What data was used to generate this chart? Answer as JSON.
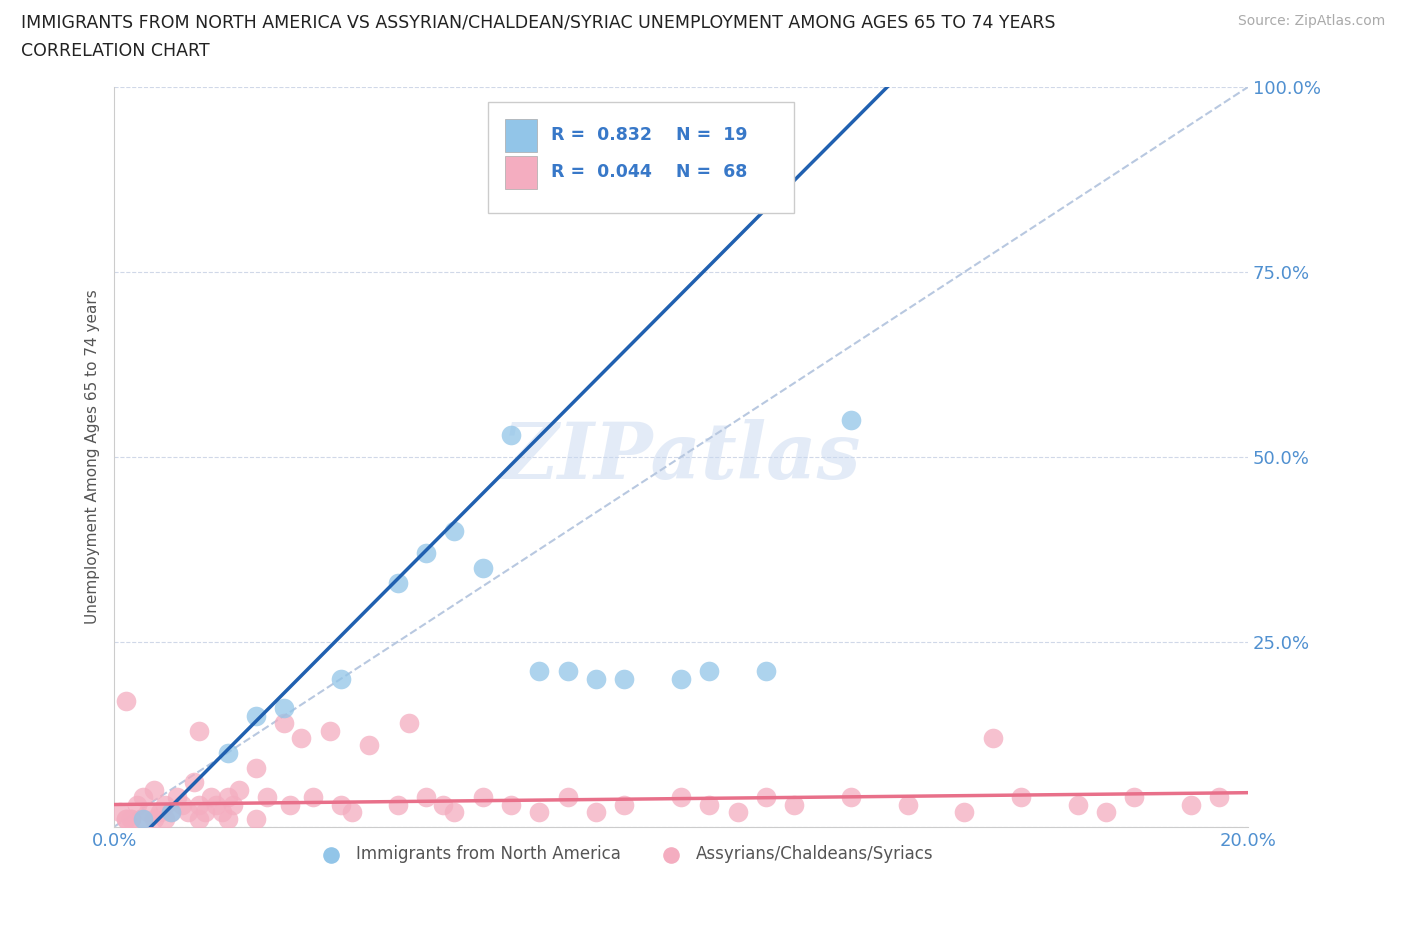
{
  "title_line1": "IMMIGRANTS FROM NORTH AMERICA VS ASSYRIAN/CHALDEAN/SYRIAC UNEMPLOYMENT AMONG AGES 65 TO 74 YEARS",
  "title_line2": "CORRELATION CHART",
  "source_text": "Source: ZipAtlas.com",
  "ylabel": "Unemployment Among Ages 65 to 74 years",
  "xlim": [
    0.0,
    0.2
  ],
  "ylim": [
    0.0,
    1.0
  ],
  "xticks": [
    0.0,
    0.05,
    0.1,
    0.15,
    0.2
  ],
  "xticklabels": [
    "0.0%",
    "",
    "",
    "",
    "20.0%"
  ],
  "yticks": [
    0.0,
    0.25,
    0.5,
    0.75,
    1.0
  ],
  "yticklabels": [
    "",
    "25.0%",
    "50.0%",
    "75.0%",
    "100.0%"
  ],
  "blue_R": 0.832,
  "blue_N": 19,
  "pink_R": 0.044,
  "pink_N": 68,
  "blue_label": "Immigrants from North America",
  "pink_label": "Assyrians/Chaldeans/Syriacs",
  "blue_color": "#92c5e8",
  "pink_color": "#f4adc0",
  "blue_line_color": "#2060b0",
  "pink_line_color": "#e8708a",
  "ref_line_color": "#b8c8e0",
  "legend_text_color": "#3878c8",
  "axis_color": "#5090d0",
  "ylabel_color": "#555555",
  "background_color": "#ffffff",
  "grid_color": "#d0d8e8",
  "blue_line_slope": 7.7,
  "blue_line_intercept": -0.05,
  "pink_line_slope": 0.08,
  "pink_line_intercept": 0.03,
  "blue_scatter_x": [
    0.005,
    0.01,
    0.02,
    0.025,
    0.03,
    0.04,
    0.05,
    0.055,
    0.06,
    0.065,
    0.07,
    0.075,
    0.08,
    0.085,
    0.09,
    0.1,
    0.105,
    0.115,
    0.13
  ],
  "blue_scatter_y": [
    0.01,
    0.02,
    0.1,
    0.15,
    0.16,
    0.2,
    0.33,
    0.37,
    0.4,
    0.35,
    0.53,
    0.21,
    0.21,
    0.2,
    0.2,
    0.2,
    0.21,
    0.21,
    0.55
  ],
  "pink_scatter_x": [
    0.001,
    0.002,
    0.002,
    0.003,
    0.004,
    0.005,
    0.006,
    0.007,
    0.008,
    0.009,
    0.01,
    0.011,
    0.012,
    0.013,
    0.014,
    0.015,
    0.015,
    0.016,
    0.017,
    0.018,
    0.019,
    0.02,
    0.021,
    0.022,
    0.025,
    0.027,
    0.03,
    0.031,
    0.033,
    0.035,
    0.038,
    0.04,
    0.042,
    0.045,
    0.05,
    0.052,
    0.055,
    0.058,
    0.06,
    0.065,
    0.07,
    0.075,
    0.08,
    0.085,
    0.09,
    0.1,
    0.105,
    0.11,
    0.115,
    0.12,
    0.13,
    0.14,
    0.15,
    0.155,
    0.16,
    0.17,
    0.175,
    0.18,
    0.19,
    0.195,
    0.002,
    0.003,
    0.005,
    0.007,
    0.009,
    0.015,
    0.02,
    0.025
  ],
  "pink_scatter_y": [
    0.02,
    0.01,
    0.17,
    0.01,
    0.03,
    0.04,
    0.02,
    0.05,
    0.02,
    0.03,
    0.02,
    0.04,
    0.03,
    0.02,
    0.06,
    0.03,
    0.13,
    0.02,
    0.04,
    0.03,
    0.02,
    0.04,
    0.03,
    0.05,
    0.08,
    0.04,
    0.14,
    0.03,
    0.12,
    0.04,
    0.13,
    0.03,
    0.02,
    0.11,
    0.03,
    0.14,
    0.04,
    0.03,
    0.02,
    0.04,
    0.03,
    0.02,
    0.04,
    0.02,
    0.03,
    0.04,
    0.03,
    0.02,
    0.04,
    0.03,
    0.04,
    0.03,
    0.02,
    0.12,
    0.04,
    0.03,
    0.02,
    0.04,
    0.03,
    0.04,
    0.01,
    0.01,
    0.01,
    0.01,
    0.01,
    0.01,
    0.01,
    0.01
  ]
}
